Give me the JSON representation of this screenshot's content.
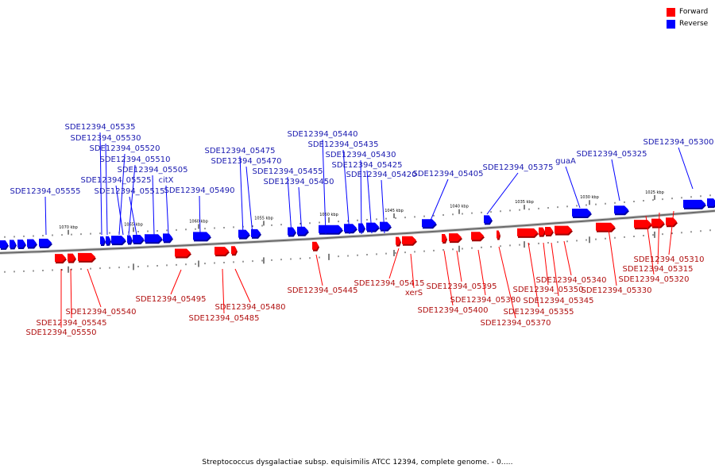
{
  "legend": [
    {
      "label": "Forward",
      "color": "#ff0000"
    },
    {
      "label": "Reverse",
      "color": "#0000ff"
    }
  ],
  "caption": "Streptococcus dysgalactiae subsp. equisimilis ATCC 12394, complete genome. - 0.....",
  "ticks": [
    "1070 kbp",
    "1065 kbp",
    "1060 kbp",
    "1055 kbp",
    "1050 kbp",
    "1045 kbp",
    "1040 kbp",
    "1035 kbp",
    "1030 kbp",
    "1025 kbp"
  ],
  "reverse_labels": [
    "SDE12394_05535",
    "SDE12394_05530",
    "SDE12394_05520",
    "SDE12394_05510",
    "SDE12394_05505",
    "SDE12394_05525",
    "SDE12394_05515",
    "citX",
    "SDE12394_05555",
    "SDE12394_05490",
    "SDE12394_05475",
    "SDE12394_05470",
    "SDE12394_05455",
    "SDE12394_05450",
    "SDE12394_05440",
    "SDE12394_05435",
    "SDE12394_05430",
    "SDE12394_05425",
    "SDE12394_05420",
    "SDE12394_05405",
    "SDE12394_05375",
    "guaA",
    "SDE12394_05325",
    "SDE12394_05300"
  ],
  "forward_labels": [
    "SDE12394_05540",
    "SDE12394_05545",
    "SDE12394_05550",
    "SDE12394_05495",
    "SDE12394_05480",
    "SDE12394_05485",
    "SDE12394_05445",
    "SDE12394_05415",
    "xerS",
    "SDE12394_05400",
    "SDE12394_05395",
    "SDE12394_05380",
    "SDE12394_05370",
    "SDE12394_05355",
    "SDE12394_05350",
    "SDE12394_05345",
    "SDE12394_05340",
    "SDE12394_05330",
    "SDE12394_05320",
    "SDE12394_05315",
    "SDE12394_05310"
  ]
}
